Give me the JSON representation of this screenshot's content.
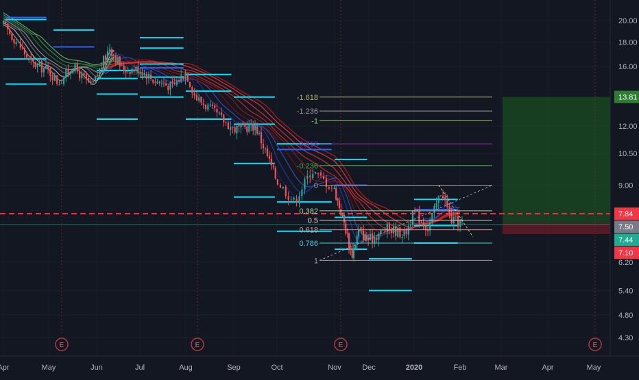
{
  "chart_data": {
    "type": "candlestick",
    "scale": "log",
    "x_axis_labels": [
      "Apr",
      "May",
      "Jun",
      "Jul",
      "Aug",
      "Sep",
      "Oct",
      "Nov",
      "Dec",
      "2020",
      "Feb",
      "Mar",
      "Apr",
      "May"
    ],
    "y_axis_labels": [
      "20.00",
      "18.00",
      "16.00",
      "13.81",
      "12.00",
      "10.50",
      "9.00",
      "7.84",
      "7.50",
      "7.44",
      "7.10",
      "6.20",
      "5.40",
      "4.80",
      "4.30"
    ],
    "price_tags": [
      {
        "label": "13.81",
        "value": 13.81,
        "color": "#2e7d32"
      },
      {
        "label": "7.84",
        "value": 7.84,
        "color": "#f23645"
      },
      {
        "label": "7.50",
        "value": 7.5,
        "color": "#787b86"
      },
      {
        "label": "7.44",
        "value": 7.44,
        "color": "#22ab94"
      },
      {
        "label": "7.10",
        "value": 7.1,
        "color": "#f23645"
      }
    ],
    "price_series": {
      "dates": [
        "Apr",
        "May",
        "Jun",
        "Jul",
        "Aug",
        "Sep",
        "Oct",
        "Nov",
        "Dec",
        "2020",
        "Feb"
      ],
      "close_approx": [
        19.5,
        16.8,
        15.6,
        15.8,
        14.5,
        12.0,
        9.2,
        8.6,
        6.9,
        7.4,
        7.5
      ]
    },
    "fibonacci": {
      "levels": [
        {
          "label": "-1.618",
          "value": 13.8,
          "color": "#b3b86b"
        },
        {
          "label": "-1.236",
          "value": 12.9,
          "color": "#9e9e9e"
        },
        {
          "label": "-1",
          "value": 12.3,
          "color": "#9ccc65"
        },
        {
          "label": "-0.618",
          "value": 11.0,
          "color": "#9c27b0"
        },
        {
          "label": "-0.236",
          "value": 9.9,
          "color": "#4caf50"
        },
        {
          "label": "0",
          "value": 9.0,
          "color": "#9e9e9e"
        },
        {
          "label": "0.382",
          "value": 7.95,
          "color": "#a5d6a7"
        },
        {
          "label": "0.5",
          "value": 7.6,
          "color": "#e0e0c0"
        },
        {
          "label": "0.618",
          "value": 7.25,
          "color": "#ef9a9a"
        },
        {
          "label": "0.786",
          "value": 6.8,
          "color": "#4dd0e1"
        },
        {
          "label": "1",
          "value": 6.25,
          "color": "#9e9e9e"
        }
      ]
    },
    "position": {
      "entry": 7.5,
      "target": 13.81,
      "stop": 7.1
    },
    "earnings_markers": [
      "E",
      "E",
      "E",
      "E"
    ],
    "reference_lines": [
      {
        "value": 7.84,
        "style": "dashed",
        "color": "#f23645"
      },
      {
        "value": 7.44,
        "style": "solid",
        "color": "#22ab94"
      }
    ]
  },
  "colors": {
    "background": "#131722",
    "grid": "#2a2e39",
    "up": "#26a69a",
    "down": "#ef5350",
    "axis_text": "#b2b5be",
    "cyan": "#00e5ff",
    "blue": "#2962ff",
    "ribbon_red": "#c62828",
    "ribbon_dark_red": "#7a1010",
    "ribbon_navy": "#1a237e",
    "ribbon_green": "#2e7d32",
    "ribbon_grey": "#9e9e9e"
  }
}
